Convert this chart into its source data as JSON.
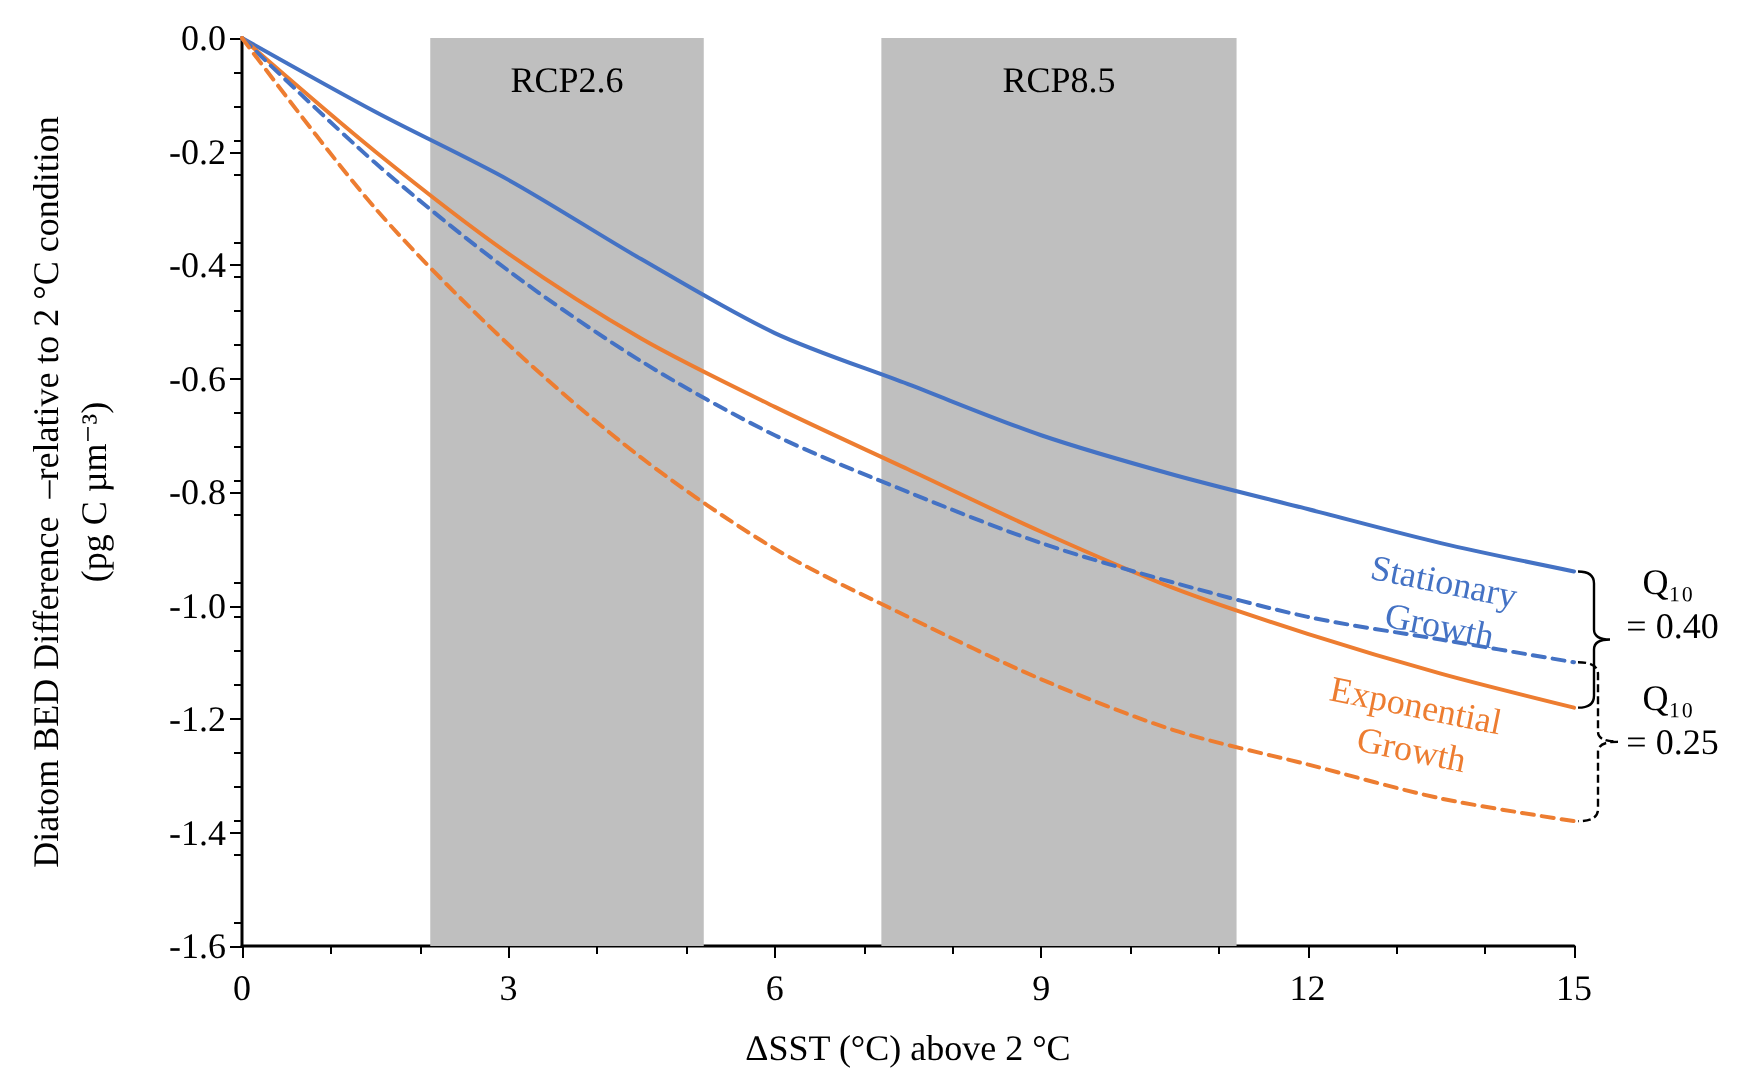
{
  "chart_data": {
    "type": "line",
    "xlabel": "ΔSST (°C) above 2 °C",
    "ylabel": "Diatom BED Difference  –relative to 2 °C condition\n(pg C µm⁻³)",
    "x": [
      0,
      1.5,
      3,
      4.5,
      6,
      7.5,
      9,
      10.5,
      12,
      13.5,
      15
    ],
    "series": [
      {
        "color": "#4472c4",
        "line_style": "solid",
        "values": [
          0,
          -0.13,
          -0.25,
          -0.39,
          -0.52,
          -0.61,
          -0.7,
          -0.77,
          -0.83,
          -0.89,
          -0.94
        ]
      },
      {
        "color": "#ed7d31",
        "line_style": "solid",
        "values": [
          0,
          -0.2,
          -0.38,
          -0.53,
          -0.65,
          -0.76,
          -0.87,
          -0.97,
          -1.05,
          -1.12,
          -1.18
        ]
      },
      {
        "color": "#4472c4",
        "line_style": "dashed",
        "values": [
          0,
          -0.22,
          -0.41,
          -0.57,
          -0.7,
          -0.8,
          -0.89,
          -0.96,
          -1.02,
          -1.06,
          -1.1
        ]
      },
      {
        "color": "#ed7d31",
        "line_style": "dashed",
        "values": [
          0,
          -0.3,
          -0.54,
          -0.74,
          -0.9,
          -1.02,
          -1.13,
          -1.22,
          -1.28,
          -1.34,
          -1.38
        ]
      }
    ],
    "xlim": [
      0,
      15
    ],
    "xticks": [
      0,
      3,
      6,
      9,
      12,
      15
    ],
    "ylim": [
      -1.6,
      0
    ],
    "yticks": [
      {
        "value": -1.6,
        "label": "-1.6"
      },
      {
        "value": -1.4,
        "label": "-1.4"
      },
      {
        "value": -1.2,
        "label": "-1.2"
      },
      {
        "value": -1,
        "label": "-1.0"
      },
      {
        "value": -0.8,
        "label": "-0.8"
      },
      {
        "value": -0.6,
        "label": "-0.6"
      },
      {
        "value": -0.4,
        "label": "-0.4"
      },
      {
        "value": -0.2,
        "label": "-0.2"
      },
      {
        "value": 0,
        "label": "0.0"
      }
    ],
    "bands": [
      {
        "axis": "x",
        "from": 2.12,
        "to": 5.2,
        "label": "RCP2.6",
        "color": "#bfbfbf"
      },
      {
        "axis": "x",
        "from": 7.2,
        "to": 11.2,
        "label": "RCP8.5",
        "color": "#bfbfbf"
      }
    ],
    "annotations": [
      "Stationary Growth",
      "Exponential Growth",
      "Q₁₀ = 0.40",
      "Q₁₀ = 0.25"
    ],
    "marker": "none",
    "grid": false
  }
}
